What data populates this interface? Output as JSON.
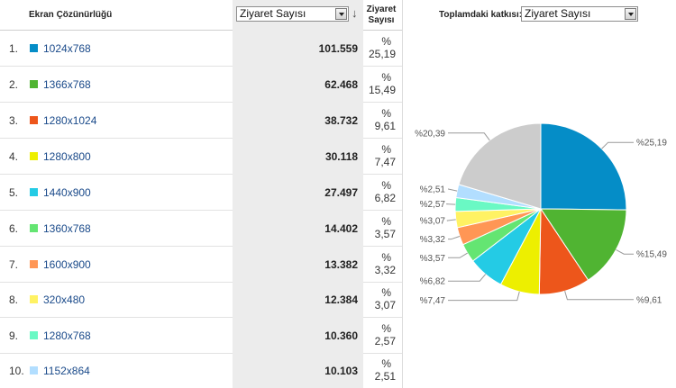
{
  "header": {
    "dimension_label": "Ekran Çözünürlüğü",
    "metric_select": "Ziyaret Sayısı",
    "metric_column": "Ziyaret Sayısı",
    "contribution_label": "Toplamdaki katkısı:",
    "contribution_select": "Ziyaret Sayısı"
  },
  "rows": [
    {
      "index": "1.",
      "label": "1024x768",
      "value": "101.559",
      "pct_symbol": "%",
      "pct": "25,19",
      "color": "#058dc7"
    },
    {
      "index": "2.",
      "label": "1366x768",
      "value": "62.468",
      "pct_symbol": "%",
      "pct": "15,49",
      "color": "#50b432"
    },
    {
      "index": "3.",
      "label": "1280x1024",
      "value": "38.732",
      "pct_symbol": "%",
      "pct": "9,61",
      "color": "#ed561b"
    },
    {
      "index": "4.",
      "label": "1280x800",
      "value": "30.118",
      "pct_symbol": "%",
      "pct": "7,47",
      "color": "#edef00"
    },
    {
      "index": "5.",
      "label": "1440x900",
      "value": "27.497",
      "pct_symbol": "%",
      "pct": "6,82",
      "color": "#24cbe5"
    },
    {
      "index": "6.",
      "label": "1360x768",
      "value": "14.402",
      "pct_symbol": "%",
      "pct": "3,57",
      "color": "#64e572"
    },
    {
      "index": "7.",
      "label": "1600x900",
      "value": "13.382",
      "pct_symbol": "%",
      "pct": "3,32",
      "color": "#ff9655"
    },
    {
      "index": "8.",
      "label": "320x480",
      "value": "12.384",
      "pct_symbol": "%",
      "pct": "3,07",
      "color": "#fff263"
    },
    {
      "index": "9.",
      "label": "1280x768",
      "value": "10.360",
      "pct_symbol": "%",
      "pct": "2,57",
      "color": "#6af9c4"
    },
    {
      "index": "10.",
      "label": "1152x864",
      "value": "10.103",
      "pct_symbol": "%",
      "pct": "2,51",
      "color": "#b2deff"
    }
  ],
  "chart_data": {
    "type": "pie",
    "slices": [
      {
        "label": "%25,19",
        "value": 25.19,
        "color": "#058dc7"
      },
      {
        "label": "%15,49",
        "value": 15.49,
        "color": "#50b432"
      },
      {
        "label": "%9,61",
        "value": 9.61,
        "color": "#ed561b"
      },
      {
        "label": "%7,47",
        "value": 7.47,
        "color": "#edef00"
      },
      {
        "label": "%6,82",
        "value": 6.82,
        "color": "#24cbe5"
      },
      {
        "label": "%3,57",
        "value": 3.57,
        "color": "#64e572"
      },
      {
        "label": "%3,32",
        "value": 3.32,
        "color": "#ff9655"
      },
      {
        "label": "%3,07",
        "value": 3.07,
        "color": "#fff263"
      },
      {
        "label": "%2,57",
        "value": 2.57,
        "color": "#6af9c4"
      },
      {
        "label": "%2,51",
        "value": 2.51,
        "color": "#b2deff"
      },
      {
        "label": "%20,39",
        "value": 20.39,
        "color": "#cccccc"
      }
    ]
  }
}
